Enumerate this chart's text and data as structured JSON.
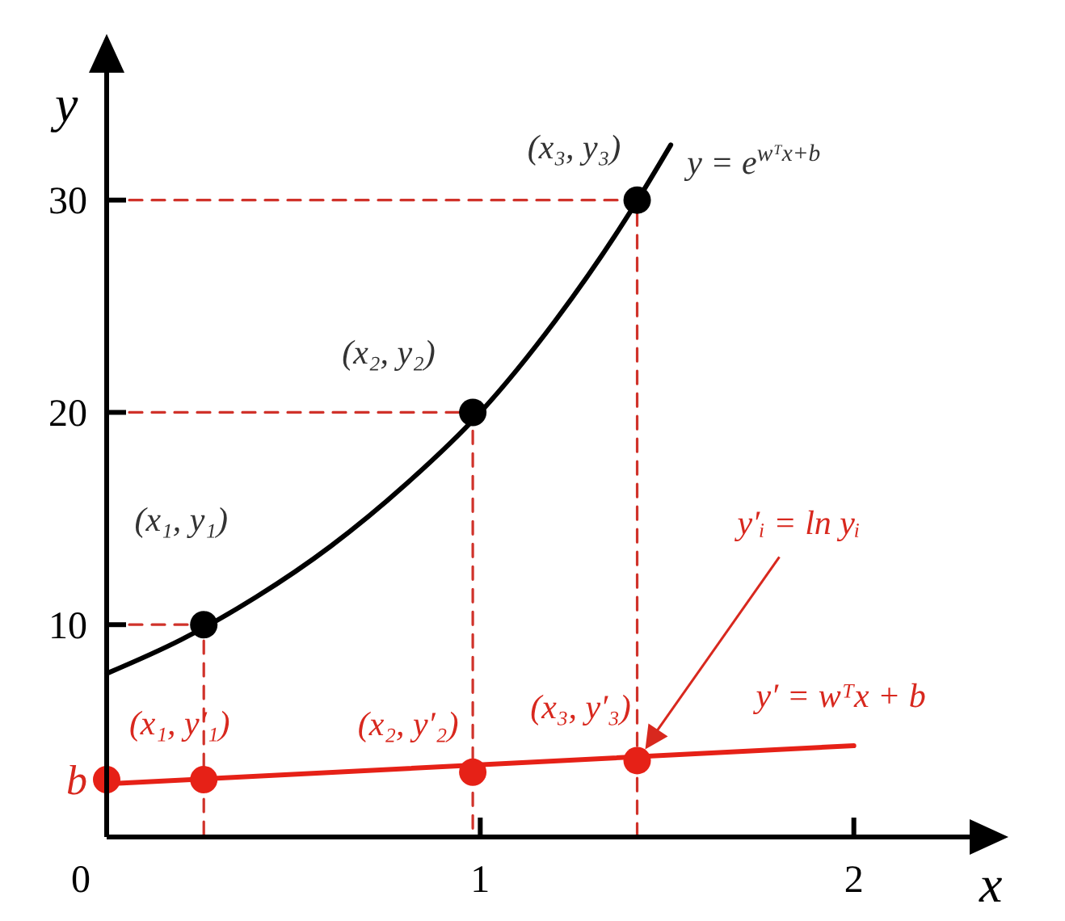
{
  "chart_data": {
    "type": "line",
    "xlabel": "x",
    "ylabel": "y",
    "xlim": [
      0,
      2.31
    ],
    "ylim": [
      0,
      36
    ],
    "xticks": [
      0,
      1,
      2
    ],
    "yticks": [
      {
        "value": 2.7,
        "label": "b"
      },
      10,
      20,
      30
    ],
    "series": [
      {
        "type": "line",
        "color": "#000000",
        "x": [
          0,
          0.2,
          0.4,
          0.6,
          0.8,
          1.0,
          1.2,
          1.4,
          1.51
        ],
        "values": [
          7.7,
          9.3,
          11.3,
          13.7,
          16.6,
          20.0,
          24.3,
          29.4,
          32.6
        ]
      },
      {
        "type": "line",
        "color": "#d0322a",
        "line_style": "dashed",
        "x": [
          0,
          0.26,
          0.26
        ],
        "values": [
          10,
          10,
          0
        ]
      },
      {
        "type": "line",
        "color": "#d0322a",
        "line_style": "dashed",
        "x": [
          0,
          0.98,
          0.98
        ],
        "values": [
          20,
          20,
          0
        ]
      },
      {
        "type": "line",
        "color": "#d0322a",
        "line_style": "dashed",
        "x": [
          0,
          1.42,
          1.42
        ],
        "values": [
          30,
          30,
          0
        ]
      },
      {
        "type": "scatter",
        "marker": "circle",
        "color": "#000000",
        "x": [
          0.26,
          0.98,
          1.42
        ],
        "values": [
          10,
          20,
          30
        ]
      },
      {
        "type": "line",
        "color": "#e62117",
        "x": [
          0,
          2
        ],
        "values": [
          2.5,
          4.3
        ]
      },
      {
        "type": "scatter",
        "marker": "circle",
        "color": "#e62117",
        "x": [
          0,
          0.26,
          0.98,
          1.42
        ],
        "values": [
          2.7,
          2.7,
          3.05,
          3.6
        ]
      }
    ],
    "annotations": [
      {
        "text": "(x₁, y₁)",
        "x": 0.26,
        "y": 10
      },
      {
        "text": "(x₂, y₂)",
        "x": 0.98,
        "y": 20
      },
      {
        "text": "(x₃, y₃)",
        "x": 1.42,
        "y": 30
      },
      {
        "text": "y = e$^{wᵀx+b}$",
        "x": 1.51,
        "y": 32.6
      },
      {
        "text": "(x₁, y′₁)",
        "x": 0.26,
        "y": 2.7
      },
      {
        "text": "(x₂, y′₂)",
        "x": 0.98,
        "y": 3.05
      },
      {
        "text": "(x₃, y′₃)",
        "x": 1.42,
        "y": 3.6
      },
      "y′ᵢ = ln yᵢ",
      {
        "text": "y′ = wᵀx + b",
        "x": 2,
        "y": 4.3
      }
    ]
  }
}
